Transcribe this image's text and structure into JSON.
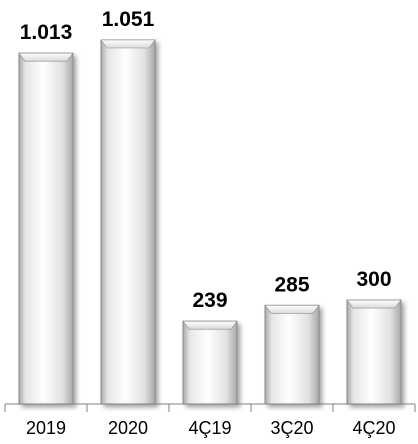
{
  "chart_data": {
    "type": "bar",
    "categories": [
      "2019",
      "2020",
      "4Ç19",
      "3Ç20",
      "4Ç20"
    ],
    "values": [
      1013,
      1051,
      239,
      285,
      300
    ],
    "value_labels": [
      "1.013",
      "1.051",
      "239",
      "285",
      "300"
    ],
    "ylim": [
      0,
      1051
    ],
    "grid": false,
    "legend": "none",
    "title": "",
    "xlabel": "",
    "ylabel": "",
    "colors": {
      "bar_light": "#ffffff",
      "bar_mid": "#e2e2e2",
      "bar_dark": "#a9a9a9",
      "bar_outline": "#8c8c8c",
      "axis": "#7f7f7f",
      "text": "#000000"
    }
  }
}
